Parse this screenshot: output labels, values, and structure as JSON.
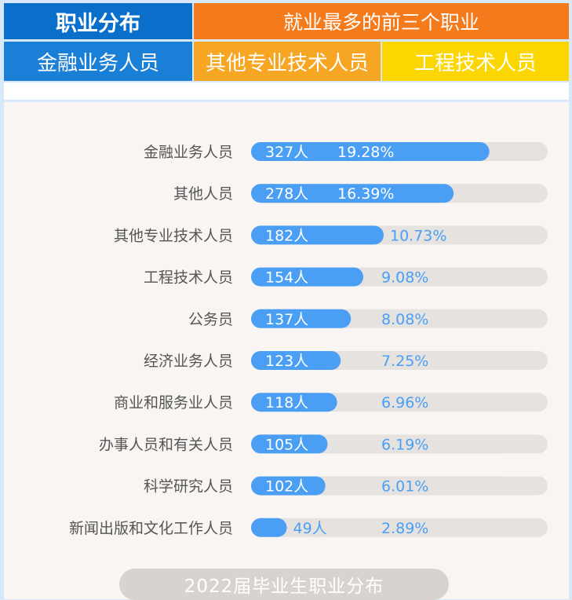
{
  "header": {
    "title": "职业分布",
    "top3_caption": "就业最多的前三个职业",
    "top3": [
      "金融业务人员",
      "其他专业技术人员",
      "工程技术人员"
    ]
  },
  "colors": {
    "title_bg": "#0a6fcb",
    "caption_bg": "#f47a1b",
    "rank1_bg": "#1a7fd6",
    "rank2_bg": "#f6a623",
    "rank3_bg": "#fcd600",
    "bar": "#4a9ff5",
    "track": "#e5e2e0",
    "label_text": "#555555",
    "value_text": "#4a9ff5"
  },
  "chart_data": {
    "type": "bar",
    "orientation": "horizontal",
    "categories": [
      "金融业务人员",
      "其他人员",
      "其他专业技术人员",
      "工程技术人员",
      "公务员",
      "经济业务人员",
      "商业和服务业人员",
      "办事人员和有关人员",
      "科学研究人员",
      "新闻出版和文化工作人员"
    ],
    "counts": [
      327,
      278,
      182,
      154,
      137,
      123,
      118,
      105,
      102,
      49
    ],
    "count_labels": [
      "327人",
      "278人",
      "182人",
      "154人",
      "137人",
      "123人",
      "118人",
      "105人",
      "102人",
      "49人"
    ],
    "values": [
      19.28,
      16.39,
      10.73,
      9.08,
      8.08,
      7.25,
      6.96,
      6.19,
      6.01,
      2.89
    ],
    "percent_labels": [
      "19.28%",
      "16.39%",
      "10.73%",
      "9.08%",
      "8.08%",
      "7.25%",
      "6.96%",
      "6.19%",
      "6.01%",
      "2.89%"
    ],
    "xlim": [
      0,
      24
    ],
    "title": "2022届毕业生职业分布",
    "xlabel": "",
    "ylabel": ""
  }
}
